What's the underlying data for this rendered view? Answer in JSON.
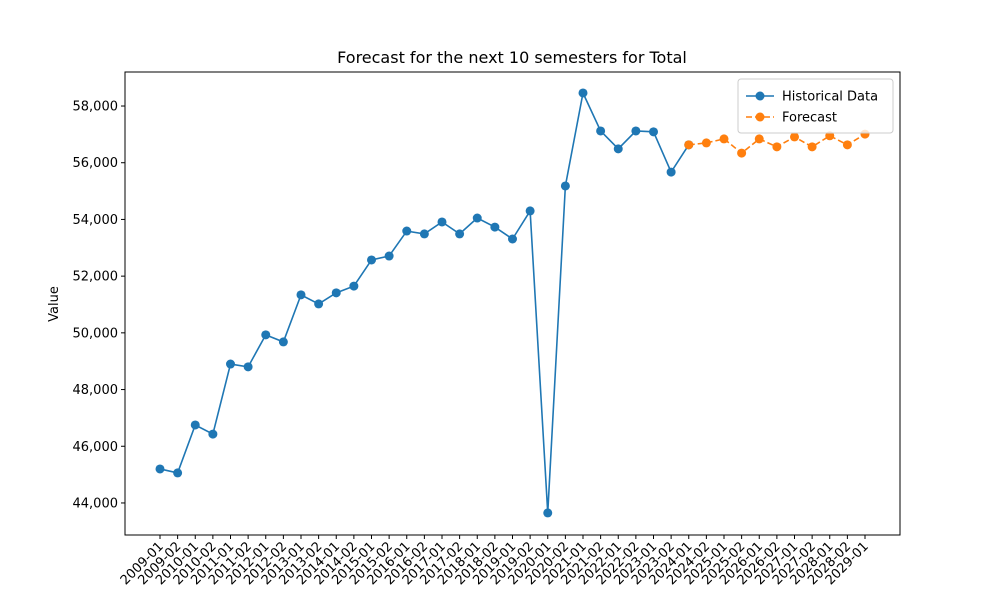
{
  "chart_data": {
    "type": "line",
    "title": "Forecast for the next 10 semesters for Total",
    "y_label": "Value",
    "categories": [
      "2009-01",
      "2009-02",
      "2010-01",
      "2010-02",
      "2011-01",
      "2011-02",
      "2012-01",
      "2012-02",
      "2013-01",
      "2013-02",
      "2014-01",
      "2014-02",
      "2015-01",
      "2015-02",
      "2016-01",
      "2016-02",
      "2017-01",
      "2017-02",
      "2018-01",
      "2018-02",
      "2019-01",
      "2019-02",
      "2020-01",
      "2020-02",
      "2021-01",
      "2021-02",
      "2022-01",
      "2022-02",
      "2023-01",
      "2023-02",
      "2024-01",
      "2024-02",
      "2025-01",
      "2025-02",
      "2026-01",
      "2026-02",
      "2027-01",
      "2027-02",
      "2028-01",
      "2028-02",
      "2029-01"
    ],
    "series": [
      {
        "name": "Historical Data",
        "color": "#1f77b4",
        "dashed": false,
        "values": [
          45200,
          45060,
          46750,
          46430,
          48900,
          48800,
          49930,
          49680,
          51340,
          51020,
          51410,
          51650,
          52570,
          52710,
          53590,
          53490,
          53910,
          53490,
          54050,
          53730,
          53310,
          54300,
          43650,
          55180,
          58460,
          57120,
          56490,
          57120,
          57090,
          55670,
          56630,
          null,
          null,
          null,
          null,
          null,
          null,
          null,
          null,
          null,
          null
        ]
      },
      {
        "name": "Forecast",
        "color": "#ff7f0e",
        "dashed": true,
        "values": [
          null,
          null,
          null,
          null,
          null,
          null,
          null,
          null,
          null,
          null,
          null,
          null,
          null,
          null,
          null,
          null,
          null,
          null,
          null,
          null,
          null,
          null,
          null,
          null,
          null,
          null,
          null,
          null,
          null,
          null,
          56630,
          56700,
          56840,
          56340,
          56840,
          56560,
          56910,
          56560,
          56950,
          56630,
          57010
        ]
      }
    ],
    "ylim": [
      42870,
      59200
    ],
    "yticks": [
      {
        "value": 44000,
        "label": "44,000"
      },
      {
        "value": 46000,
        "label": "46,000"
      },
      {
        "value": 48000,
        "label": "48,000"
      },
      {
        "value": 50000,
        "label": "50,000"
      },
      {
        "value": 52000,
        "label": "52,000"
      },
      {
        "value": 54000,
        "label": "54,000"
      },
      {
        "value": 56000,
        "label": "56,000"
      },
      {
        "value": 58000,
        "label": "58,000"
      }
    ],
    "legend": "upper right"
  }
}
